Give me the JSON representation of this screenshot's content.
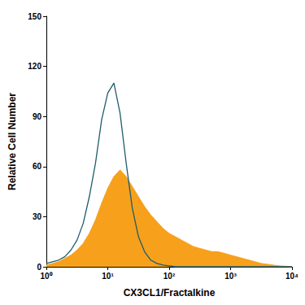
{
  "chart_data": {
    "type": "line",
    "x_label": "CX3CL1/Fractalkine",
    "y_label": "Relative Cell Number",
    "log": "x",
    "grid": false,
    "xlim": [
      1,
      10000
    ],
    "xticks": [
      {
        "value": 1,
        "label": "10⁰"
      },
      {
        "value": 10,
        "label": "10¹"
      },
      {
        "value": 100,
        "label": "10²"
      },
      {
        "value": 1000,
        "label": "10³"
      },
      {
        "value": 10000,
        "label": "10⁴"
      }
    ],
    "ylim": [
      0,
      150
    ],
    "yticks": [
      0,
      30,
      60,
      90,
      120,
      150
    ],
    "x": [
      1,
      1.259,
      1.585,
      1.995,
      2.512,
      3.162,
      3.981,
      5.012,
      6.31,
      7.943,
      10,
      12.59,
      15.85,
      19.95,
      25.12,
      31.62,
      39.81,
      50.12,
      63.1,
      79.43,
      100,
      125.9,
      158.5,
      199.5,
      251.2,
      316.2,
      398.1,
      501.2,
      631,
      794.3,
      1000,
      1259,
      1585,
      1995,
      2512,
      3162,
      3981,
      5012,
      6310,
      7943,
      10000
    ],
    "series": [
      {
        "type": "area",
        "color": "#f7a01c",
        "values": [
          1,
          2,
          3,
          5,
          7,
          10,
          14,
          20,
          28,
          38,
          47,
          54,
          58,
          54,
          48,
          42,
          36,
          31,
          27,
          23,
          20,
          18,
          16,
          14,
          12,
          11,
          10,
          9,
          9,
          8,
          7,
          6,
          5,
          4,
          3,
          2,
          1.5,
          1,
          0.5,
          0.3,
          0
        ]
      },
      {
        "type": "line",
        "color": "#1e5c6b",
        "values": [
          2,
          3,
          4,
          6,
          10,
          16,
          26,
          42,
          62,
          88,
          104,
          110,
          92,
          62,
          35,
          18,
          9,
          4,
          2,
          1,
          0.5,
          0,
          0,
          0,
          0,
          0,
          0,
          0,
          0,
          0,
          0,
          0,
          0,
          0,
          0,
          0,
          0,
          0,
          0,
          0,
          0
        ]
      }
    ]
  }
}
